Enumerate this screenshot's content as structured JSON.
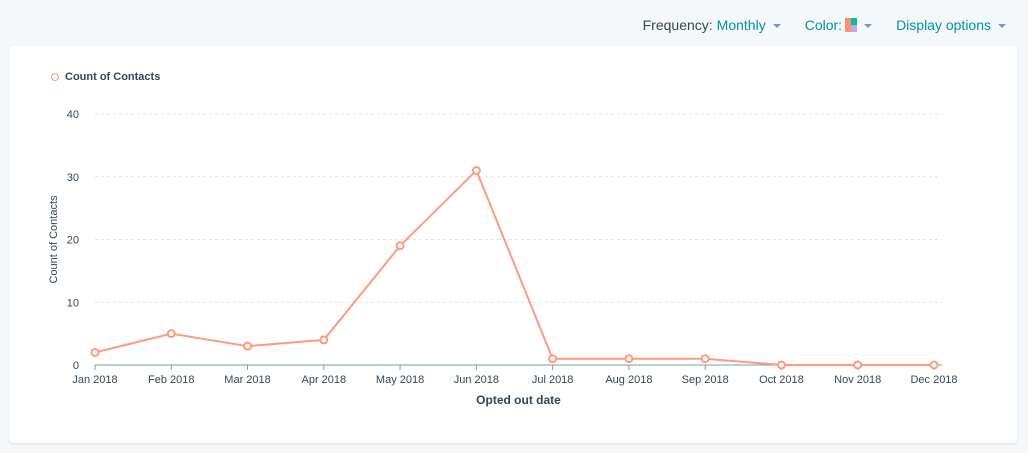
{
  "toolbar": {
    "frequency_label": "Frequency:",
    "frequency_value": "Monthly",
    "color_label": "Color:",
    "color_swatch": [
      "#ff8f73",
      "#00bda5",
      "#c4a5e6"
    ],
    "display_options_label": "Display options"
  },
  "legend": {
    "series_label": "Count of Contacts",
    "color": "#ff9b7d"
  },
  "chart_data": {
    "type": "line",
    "title": "",
    "xlabel": "Opted out date",
    "ylabel": "Count of Contacts",
    "categories": [
      "Jan 2018",
      "Feb 2018",
      "Mar 2018",
      "Apr 2018",
      "May 2018",
      "Jun 2018",
      "Jul 2018",
      "Aug 2018",
      "Sep 2018",
      "Oct 2018",
      "Nov 2018",
      "Dec 2018"
    ],
    "series": [
      {
        "name": "Count of Contacts",
        "color": "#ff9b7d",
        "values": [
          2,
          5,
          3,
          4,
          19,
          31,
          1,
          1,
          1,
          0,
          0,
          0
        ]
      }
    ],
    "yticks": [
      0,
      10,
      20,
      30,
      40
    ],
    "ylim": [
      0,
      40
    ],
    "grid": true,
    "legend_position": "top-left"
  }
}
